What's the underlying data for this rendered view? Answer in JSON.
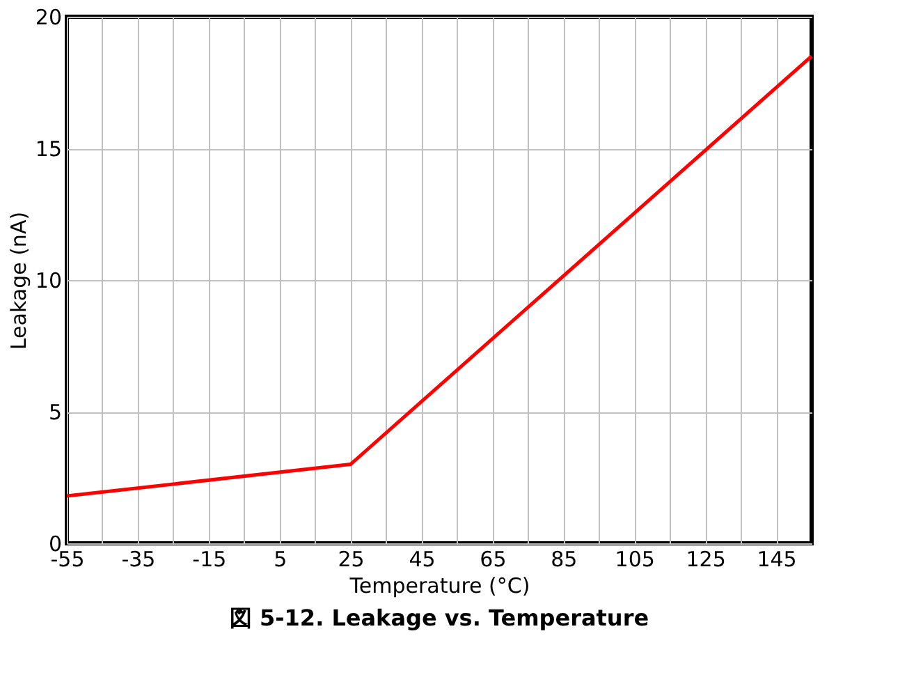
{
  "chart_data": {
    "type": "line",
    "title": "図 5-12. Leakage vs. Temperature",
    "xlabel": "Temperature (°C)",
    "ylabel": "Leakage (nA)",
    "x": [
      -55,
      25,
      155
    ],
    "series": [
      {
        "color": "#ff0000",
        "values": [
          1.8,
          3.0,
          18.5
        ]
      }
    ],
    "xlim": [
      -55,
      155
    ],
    "ylim": [
      0,
      20
    ],
    "xticks": [
      -55,
      {
        "value": -45,
        "label": null
      },
      -35,
      {
        "value": -25,
        "label": null
      },
      -15,
      {
        "value": -5,
        "label": null
      },
      5,
      {
        "value": 15,
        "label": null
      },
      25,
      {
        "value": 35,
        "label": null
      },
      45,
      {
        "value": 55,
        "label": null
      },
      65,
      {
        "value": 75,
        "label": null
      },
      85,
      {
        "value": 95,
        "label": null
      },
      105,
      {
        "value": 115,
        "label": null
      },
      125,
      {
        "value": 135,
        "label": null
      },
      145
    ],
    "yticks": [
      0,
      5,
      10,
      15,
      20
    ],
    "grid": true,
    "marker": "none",
    "line_style": "solid"
  }
}
